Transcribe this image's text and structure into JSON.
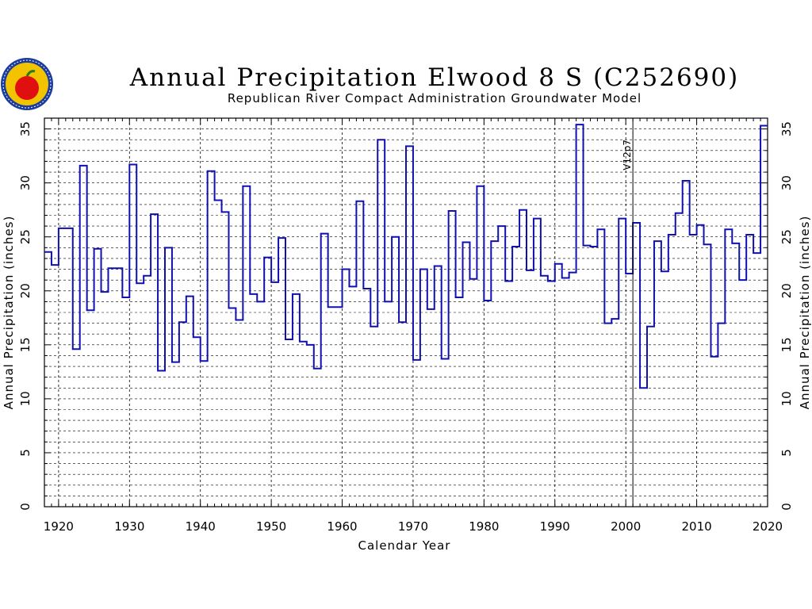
{
  "header": {
    "title": "Annual Precipitation Elwood 8 S (C252690)",
    "subtitle": "Republican River Compact Administration Groundwater Model"
  },
  "colors": {
    "series": "#1010b0",
    "grid": "#000000",
    "axis": "#000000",
    "logo_ring": "#1a3c9c",
    "logo_fill": "#f2c400",
    "logo_apple": "#e01010"
  },
  "icons": {
    "logo": "apple-seal-logo"
  },
  "chart_data": {
    "type": "line",
    "style": "step",
    "title": "Annual Precipitation Elwood 8 S (C252690)",
    "subtitle": "Republican River Compact Administration Groundwater Model",
    "xlabel": "Calendar Year",
    "ylabel": "Annual Precipitation (inches)",
    "xlim": [
      1918,
      2020
    ],
    "ylim": [
      0,
      36
    ],
    "x_ticks": [
      1920,
      1930,
      1940,
      1950,
      1960,
      1970,
      1980,
      1990,
      2000,
      2010,
      2020
    ],
    "y_ticks": [
      0,
      5,
      10,
      15,
      20,
      25,
      30,
      35
    ],
    "grid": true,
    "annotations": [
      {
        "text": "V12p7",
        "x": 2001
      }
    ],
    "series": [
      {
        "years": [
          1918,
          1919,
          1920,
          1921,
          1922,
          1923,
          1924,
          1925,
          1926,
          1927,
          1928,
          1929,
          1930,
          1931,
          1932,
          1933,
          1934,
          1935,
          1936,
          1937,
          1938,
          1939,
          1940,
          1941,
          1942,
          1943,
          1944,
          1945,
          1946,
          1947,
          1948,
          1949,
          1950,
          1951,
          1952,
          1953,
          1954,
          1955,
          1956,
          1957,
          1958,
          1959,
          1960,
          1961,
          1962,
          1963,
          1964,
          1965,
          1966,
          1967,
          1968,
          1969,
          1970,
          1971,
          1972,
          1973,
          1974,
          1975,
          1976,
          1977,
          1978,
          1979,
          1980,
          1981,
          1982,
          1983,
          1984,
          1985,
          1986,
          1987,
          1988,
          1989,
          1990,
          1991,
          1992,
          1993,
          1994,
          1995,
          1996,
          1997,
          1998,
          1999,
          2000,
          2001,
          2002,
          2003,
          2004,
          2005,
          2006,
          2007,
          2008,
          2009,
          2010,
          2011,
          2012,
          2013,
          2014,
          2015,
          2016,
          2017,
          2018,
          2019
        ],
        "values": [
          23.6,
          22.4,
          25.8,
          25.8,
          14.6,
          31.6,
          18.2,
          23.9,
          19.9,
          22.1,
          22.1,
          19.4,
          31.7,
          20.7,
          21.4,
          27.1,
          12.6,
          24.0,
          13.4,
          17.1,
          19.5,
          15.7,
          13.5,
          31.1,
          28.4,
          27.3,
          18.4,
          17.3,
          29.7,
          19.7,
          19.0,
          23.1,
          20.8,
          24.9,
          15.5,
          19.7,
          15.3,
          15.0,
          12.8,
          25.3,
          18.5,
          18.5,
          22.0,
          20.4,
          28.3,
          20.2,
          16.7,
          34.0,
          19.0,
          25.0,
          17.1,
          33.4,
          13.6,
          22.0,
          18.3,
          22.3,
          13.7,
          27.4,
          19.4,
          24.5,
          21.1,
          29.7,
          19.1,
          24.6,
          26.0,
          20.9,
          24.1,
          27.5,
          21.9,
          26.7,
          21.4,
          20.9,
          22.5,
          21.2,
          21.7,
          35.4,
          24.2,
          24.1,
          25.7,
          17.0,
          17.4,
          26.7,
          21.6,
          26.3,
          11.0,
          16.7,
          24.6,
          21.8,
          25.2,
          27.2,
          30.2,
          25.2,
          26.1,
          24.3,
          13.9,
          17.0,
          25.7,
          24.4,
          21.0,
          25.2,
          23.5,
          35.3
        ]
      }
    ]
  }
}
